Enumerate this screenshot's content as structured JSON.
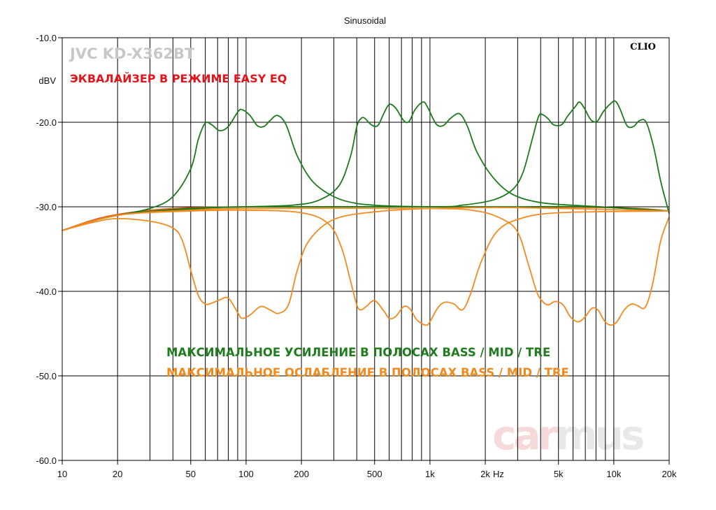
{
  "chart_data": {
    "type": "line",
    "title": "Sinusoidal",
    "ylabel": "dBV",
    "xunit": "Hz",
    "xscale": "log",
    "xlim": [
      10,
      20000
    ],
    "ylim": [
      -60,
      -10
    ],
    "grid": true,
    "xticks": [
      {
        "v": 10,
        "label": "10"
      },
      {
        "v": 20,
        "label": "20"
      },
      {
        "v": 50,
        "label": "50"
      },
      {
        "v": 100,
        "label": "100"
      },
      {
        "v": 200,
        "label": "200"
      },
      {
        "v": 500,
        "label": "500"
      },
      {
        "v": 1000,
        "label": "1k"
      },
      {
        "v": 2000,
        "label": "2k"
      },
      {
        "v": 5000,
        "label": "5k"
      },
      {
        "v": 10000,
        "label": "10k"
      },
      {
        "v": 20000,
        "label": "20k"
      }
    ],
    "yticks": [
      {
        "v": -10,
        "label": "-10.0"
      },
      {
        "v": -20,
        "label": "-20.0"
      },
      {
        "v": -30,
        "label": "-30.0"
      },
      {
        "v": -40,
        "label": "-40.0"
      },
      {
        "v": -50,
        "label": "-50.0"
      },
      {
        "v": -60,
        "label": "-60.0"
      }
    ],
    "brand_label": "CLIO",
    "annotations": {
      "model": "JVC KD-X362BT",
      "subtitle": "ЭКВАЛАЙЗЕР В РЕЖИМЕ EASY EQ",
      "boost": "МАКСИМАЛЬНОЕ УСИЛЕНИЕ В ПОЛОСАХ BASS / MID / TRE",
      "cut": "МАКСИМАЛЬНОЕ ОСЛАБЛЕНИЕ В ПОЛОСАХ BASS / MID / TRE"
    },
    "watermark": {
      "part1": "car",
      "part2": "mus"
    },
    "colors": {
      "boost": "#1a7a1a",
      "cut": "#f5891e",
      "flat": "#e05a10",
      "model": "#c8c8c8",
      "subtitle": "#e3141b",
      "boost_text": "#1f7d1f",
      "cut_text": "#f08a1c",
      "watermark1": "#f6d9d9",
      "watermark2": "#e8e8e8"
    },
    "series": [
      {
        "group": "boost",
        "points": [
          [
            10,
            -32.8
          ],
          [
            15,
            -31.6
          ],
          [
            20,
            -31
          ],
          [
            30,
            -30.2
          ],
          [
            40,
            -28.8
          ],
          [
            50,
            -25.5
          ],
          [
            55,
            -22
          ],
          [
            60,
            -20.1
          ],
          [
            65,
            -20.3
          ],
          [
            72,
            -21
          ],
          [
            80,
            -20.5
          ],
          [
            90,
            -18.8
          ],
          [
            95,
            -18.5
          ],
          [
            105,
            -19.2
          ],
          [
            115,
            -20.4
          ],
          [
            125,
            -20.5
          ],
          [
            135,
            -19.8
          ],
          [
            148,
            -19.2
          ],
          [
            165,
            -20.3
          ],
          [
            190,
            -24
          ],
          [
            230,
            -27
          ],
          [
            300,
            -28.8
          ],
          [
            400,
            -29.6
          ],
          [
            600,
            -29.9
          ],
          [
            1000,
            -30
          ],
          [
            3000,
            -30
          ],
          [
            8000,
            -30
          ],
          [
            20000,
            -30.5
          ]
        ]
      },
      {
        "group": "boost",
        "points": [
          [
            10,
            -32.8
          ],
          [
            20,
            -31
          ],
          [
            50,
            -30.2
          ],
          [
            100,
            -30
          ],
          [
            180,
            -29.8
          ],
          [
            250,
            -29.2
          ],
          [
            320,
            -27.5
          ],
          [
            370,
            -24
          ],
          [
            400,
            -20.5
          ],
          [
            420,
            -19.6
          ],
          [
            440,
            -19.5
          ],
          [
            480,
            -20.3
          ],
          [
            520,
            -20.4
          ],
          [
            560,
            -19
          ],
          [
            600,
            -17.9
          ],
          [
            650,
            -18.3
          ],
          [
            720,
            -19.8
          ],
          [
            770,
            -19.9
          ],
          [
            830,
            -18.5
          ],
          [
            920,
            -17.6
          ],
          [
            980,
            -18.4
          ],
          [
            1080,
            -20.2
          ],
          [
            1180,
            -20.4
          ],
          [
            1300,
            -19.5
          ],
          [
            1450,
            -19
          ],
          [
            1600,
            -20.5
          ],
          [
            1800,
            -23.5
          ],
          [
            2200,
            -26.5
          ],
          [
            2800,
            -28.5
          ],
          [
            4000,
            -29.5
          ],
          [
            7000,
            -29.9
          ],
          [
            20000,
            -30.5
          ]
        ]
      },
      {
        "group": "boost",
        "points": [
          [
            10,
            -32.8
          ],
          [
            20,
            -31
          ],
          [
            50,
            -30.3
          ],
          [
            100,
            -30
          ],
          [
            1000,
            -30
          ],
          [
            1500,
            -29.8
          ],
          [
            2200,
            -29.2
          ],
          [
            2800,
            -28
          ],
          [
            3200,
            -26
          ],
          [
            3600,
            -22
          ],
          [
            3900,
            -19.3
          ],
          [
            4100,
            -19.1
          ],
          [
            4400,
            -19.6
          ],
          [
            4700,
            -20.3
          ],
          [
            5200,
            -20.3
          ],
          [
            5600,
            -19.3
          ],
          [
            6200,
            -18.1
          ],
          [
            6500,
            -17.6
          ],
          [
            6900,
            -18.3
          ],
          [
            7500,
            -19.7
          ],
          [
            8100,
            -19.9
          ],
          [
            8800,
            -18.7
          ],
          [
            9600,
            -17.8
          ],
          [
            10200,
            -17.5
          ],
          [
            10800,
            -18.4
          ],
          [
            11800,
            -20.4
          ],
          [
            12800,
            -20.5
          ],
          [
            13800,
            -19.8
          ],
          [
            15000,
            -20
          ],
          [
            16500,
            -23
          ],
          [
            18000,
            -27
          ],
          [
            20000,
            -30.8
          ]
        ]
      },
      {
        "group": "cut",
        "points": [
          [
            10,
            -32.8
          ],
          [
            15,
            -31.8
          ],
          [
            20,
            -31.4
          ],
          [
            30,
            -31.7
          ],
          [
            40,
            -32.5
          ],
          [
            45,
            -34
          ],
          [
            50,
            -37.5
          ],
          [
            55,
            -40.5
          ],
          [
            60,
            -41.5
          ],
          [
            65,
            -41.4
          ],
          [
            72,
            -41
          ],
          [
            80,
            -40.8
          ],
          [
            90,
            -42.5
          ],
          [
            95,
            -43.2
          ],
          [
            105,
            -42.8
          ],
          [
            120,
            -41.8
          ],
          [
            135,
            -42.2
          ],
          [
            150,
            -42.6
          ],
          [
            170,
            -41.6
          ],
          [
            190,
            -37.5
          ],
          [
            220,
            -34
          ],
          [
            300,
            -31.5
          ],
          [
            500,
            -30.6
          ],
          [
            1000,
            -30.2
          ],
          [
            3000,
            -30.1
          ],
          [
            20000,
            -30.5
          ]
        ]
      },
      {
        "group": "cut",
        "points": [
          [
            10,
            -32.8
          ],
          [
            20,
            -31
          ],
          [
            50,
            -30.5
          ],
          [
            100,
            -30.4
          ],
          [
            200,
            -30.7
          ],
          [
            280,
            -32
          ],
          [
            330,
            -34.8
          ],
          [
            370,
            -38.8
          ],
          [
            400,
            -41.6
          ],
          [
            420,
            -42.2
          ],
          [
            450,
            -41.8
          ],
          [
            500,
            -41.1
          ],
          [
            560,
            -42.3
          ],
          [
            600,
            -43.2
          ],
          [
            650,
            -43
          ],
          [
            720,
            -41.8
          ],
          [
            780,
            -42.1
          ],
          [
            850,
            -43.4
          ],
          [
            950,
            -44
          ],
          [
            1000,
            -43.6
          ],
          [
            1100,
            -42
          ],
          [
            1200,
            -41.3
          ],
          [
            1350,
            -41.5
          ],
          [
            1500,
            -42.2
          ],
          [
            1650,
            -40.5
          ],
          [
            1900,
            -36.5
          ],
          [
            2300,
            -33
          ],
          [
            3000,
            -31.5
          ],
          [
            5000,
            -30.7
          ],
          [
            20000,
            -30.5
          ]
        ]
      },
      {
        "group": "cut",
        "points": [
          [
            10,
            -32.8
          ],
          [
            20,
            -31
          ],
          [
            50,
            -30.4
          ],
          [
            100,
            -30.2
          ],
          [
            1000,
            -30.2
          ],
          [
            1800,
            -30.5
          ],
          [
            2500,
            -31.5
          ],
          [
            3000,
            -33
          ],
          [
            3400,
            -36.5
          ],
          [
            3800,
            -40
          ],
          [
            4100,
            -41.2
          ],
          [
            4400,
            -41.6
          ],
          [
            4800,
            -41.2
          ],
          [
            5300,
            -41.6
          ],
          [
            5800,
            -43
          ],
          [
            6400,
            -43.6
          ],
          [
            7000,
            -43
          ],
          [
            7600,
            -42
          ],
          [
            8200,
            -42.2
          ],
          [
            8900,
            -43.5
          ],
          [
            9600,
            -44
          ],
          [
            10400,
            -43.6
          ],
          [
            11400,
            -42.2
          ],
          [
            12500,
            -41.5
          ],
          [
            13500,
            -41.7
          ],
          [
            14800,
            -41.9
          ],
          [
            16200,
            -39.3
          ],
          [
            18000,
            -34
          ],
          [
            20000,
            -31.2
          ]
        ]
      },
      {
        "group": "flat",
        "points": [
          [
            10,
            -32.8
          ],
          [
            15,
            -31.5
          ],
          [
            20,
            -30.9
          ],
          [
            30,
            -30.4
          ],
          [
            50,
            -30.1
          ],
          [
            100,
            -30
          ],
          [
            1000,
            -30
          ],
          [
            10000,
            -30.1
          ],
          [
            20000,
            -30.5
          ]
        ]
      }
    ]
  }
}
